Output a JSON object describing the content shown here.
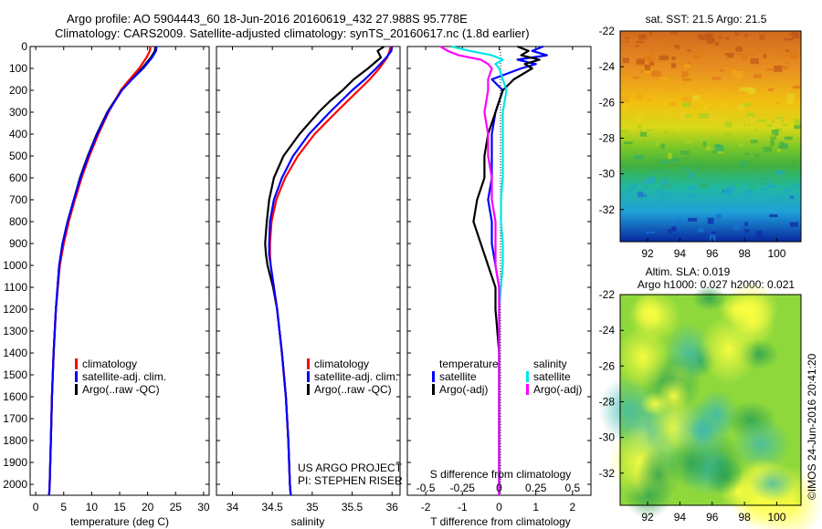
{
  "header": {
    "line1": "Argo profile: AO 5904443_60 18-Jun-2016 20160619_432 27.988S 95.778E",
    "line2": "Climatology: CARS2009. Satellite-adjusted climatology: synTS_20160617.nc (1.8d earlier)"
  },
  "side_label": "©IMOS 24-Jun-2016 20:41:20",
  "colors": {
    "climatology": "#ff0000",
    "satellite": "#0000ff",
    "argo": "#000000",
    "sal_satellite": "#00e6e6",
    "sal_argo": "#ff00ff"
  },
  "chart_data": [
    {
      "type": "line",
      "id": "temperature",
      "xlabel": "temperature (deg C)",
      "xlim": [
        -1,
        31
      ],
      "xticks": [
        "0",
        "5",
        "10",
        "15",
        "20",
        "25",
        "30"
      ],
      "ylim": [
        2050,
        0
      ],
      "yticks": [
        "0",
        "100",
        "200",
        "300",
        "400",
        "500",
        "600",
        "700",
        "800",
        "900",
        "1000",
        "1100",
        "1200",
        "1300",
        "1400",
        "1500",
        "1600",
        "1700",
        "1800",
        "1900",
        "2000"
      ],
      "legend": [
        "climatology",
        "satellite-adj. clim.",
        "Argo(..raw -QC)"
      ],
      "y": [
        0,
        20,
        50,
        100,
        150,
        200,
        300,
        400,
        500,
        600,
        700,
        800,
        900,
        1000,
        1200,
        1400,
        1600,
        1800,
        2000,
        2050
      ],
      "series": [
        {
          "name": "climatology",
          "values": [
            20.5,
            20.4,
            19.8,
            18.5,
            16.8,
            15.2,
            13.0,
            11.2,
            9.6,
            8.2,
            7.0,
            5.9,
            5.0,
            4.3,
            3.6,
            3.2,
            2.9,
            2.7,
            2.5,
            2.4
          ]
        },
        {
          "name": "satellite-adj. clim.",
          "values": [
            21.6,
            21.5,
            20.8,
            19.2,
            17.2,
            15.4,
            12.9,
            11.0,
            9.4,
            8.0,
            6.8,
            5.7,
            4.8,
            4.2,
            3.6,
            3.2,
            2.9,
            2.7,
            2.5,
            2.4
          ]
        },
        {
          "name": "Argo(..raw -QC)",
          "values": [
            21.4,
            21.3,
            20.6,
            19.0,
            17.0,
            15.3,
            12.8,
            10.9,
            9.3,
            7.9,
            6.8,
            5.7,
            4.8,
            4.2,
            3.6,
            3.2,
            2.9,
            2.7,
            2.5,
            2.4
          ]
        }
      ]
    },
    {
      "type": "line",
      "id": "salinity",
      "xlabel": "salinity",
      "xlim": [
        33.8,
        36.1
      ],
      "xticks": [
        "34",
        "34.5",
        "35",
        "35.5",
        "36"
      ],
      "ylim": [
        2050,
        0
      ],
      "legend": [
        "climatology",
        "satellite-adj. clim.",
        "Argo(..raw -QC)"
      ],
      "annotation": [
        "US ARGO PROJECT",
        "PI: STEPHEN RISER"
      ],
      "y": [
        0,
        20,
        50,
        100,
        150,
        200,
        250,
        300,
        400,
        500,
        600,
        700,
        800,
        900,
        950,
        1000,
        1100,
        1200,
        1400,
        1600,
        1800,
        2000,
        2050
      ],
      "series": [
        {
          "name": "climatology",
          "values": [
            35.98,
            35.97,
            35.94,
            35.84,
            35.72,
            35.58,
            35.44,
            35.3,
            35.03,
            34.82,
            34.66,
            34.55,
            34.49,
            34.47,
            34.47,
            34.48,
            34.52,
            34.56,
            34.62,
            34.67,
            34.7,
            34.72,
            34.73
          ]
        },
        {
          "name": "satellite-adj. clim.",
          "values": [
            36.0,
            35.99,
            35.93,
            35.8,
            35.66,
            35.5,
            35.36,
            35.22,
            34.96,
            34.76,
            34.62,
            34.52,
            34.47,
            34.46,
            34.46,
            34.48,
            34.52,
            34.56,
            34.62,
            34.67,
            34.7,
            34.72,
            34.73
          ]
        },
        {
          "name": "Argo(..raw -QC)",
          "values": [
            35.9,
            35.82,
            35.86,
            35.7,
            35.52,
            35.38,
            35.22,
            35.08,
            34.84,
            34.64,
            34.52,
            34.46,
            34.43,
            34.41,
            34.42,
            34.44,
            34.51,
            34.56,
            34.62,
            34.67,
            34.7,
            34.72,
            34.73
          ]
        }
      ]
    },
    {
      "type": "line",
      "id": "differences",
      "xlabel": "T difference from climatology",
      "xlabel_top": "S difference from climatology",
      "xlim": [
        -2.5,
        2.5
      ],
      "xticks": [
        "-2",
        "-1",
        "0",
        "1",
        "2"
      ],
      "xticks_salinity": [
        "-0.5",
        "-0.25",
        "0",
        "0.25",
        "0.5"
      ],
      "ylim": [
        2050,
        0
      ],
      "legend_groups": [
        "temperature",
        "salinity"
      ],
      "legend": [
        "satellite",
        "Argo(-adj)",
        "satellite",
        "Argo(-adj)"
      ],
      "y": [
        0,
        20,
        40,
        60,
        80,
        100,
        150,
        200,
        300,
        400,
        500,
        600,
        700,
        800,
        900,
        1000,
        1100,
        1200,
        1400,
        1600,
        1800,
        2000,
        2050
      ],
      "series": [
        {
          "name": "temperature satellite",
          "values": [
            1.2,
            0.9,
            1.3,
            0.5,
            1.0,
            0.6,
            -0.2,
            0.1,
            -0.1,
            -0.2,
            -0.2,
            -0.2,
            -0.3,
            -0.2,
            -0.2,
            -0.1,
            0.0,
            0.0,
            0.0,
            0.0,
            0.0,
            0.0,
            0.0
          ]
        },
        {
          "name": "temperature Argo(-adj)",
          "values": [
            0.5,
            0.8,
            0.6,
            1.1,
            0.7,
            0.9,
            0.4,
            0.1,
            -0.1,
            -0.3,
            -0.4,
            -0.4,
            -0.6,
            -0.7,
            -0.5,
            -0.3,
            -0.1,
            -0.1,
            0.0,
            0.0,
            0.0,
            0.0,
            0.0
          ]
        },
        {
          "name": "salinity satellite",
          "values": [
            -1.3,
            -0.8,
            -0.2,
            0.1,
            -0.1,
            0.0,
            0.1,
            0.2,
            0.1,
            0.1,
            0.1,
            0.1,
            0.05,
            0.05,
            0.1,
            0.1,
            0.05,
            0.0,
            0.0,
            0.0,
            0.0,
            0.0,
            0.0
          ]
        },
        {
          "name": "salinity Argo(-adj)",
          "values": [
            -1.6,
            -1.4,
            -1.1,
            -0.5,
            -0.3,
            -0.2,
            -0.3,
            -0.3,
            -0.4,
            -0.3,
            -0.3,
            -0.2,
            -0.2,
            -0.1,
            -0.1,
            -0.1,
            0.0,
            0.0,
            0.0,
            0.0,
            0.0,
            0.0,
            0.0
          ]
        }
      ]
    },
    {
      "type": "heatmap",
      "id": "sst-map",
      "title": "sat. SST: 21.5 Argo: 21.5",
      "xticks": [
        "92",
        "94",
        "96",
        "98",
        "100"
      ],
      "yticks": [
        "-22",
        "-24",
        "-26",
        "-28",
        "-30",
        "-32"
      ],
      "xlim": [
        90.3,
        101.5
      ],
      "ylim": [
        -33.8,
        -22
      ]
    },
    {
      "type": "heatmap",
      "id": "sla-map",
      "title_line1": "Altim. SLA: 0.019",
      "title_line2": "Argo h1000: 0.027 h2000: 0.021",
      "xticks": [
        "92",
        "94",
        "96",
        "98",
        "100"
      ],
      "yticks": [
        "-22",
        "-24",
        "-26",
        "-28",
        "-30",
        "-32"
      ],
      "xlim": [
        90.3,
        101.5
      ],
      "ylim": [
        -33.8,
        -22
      ]
    }
  ]
}
